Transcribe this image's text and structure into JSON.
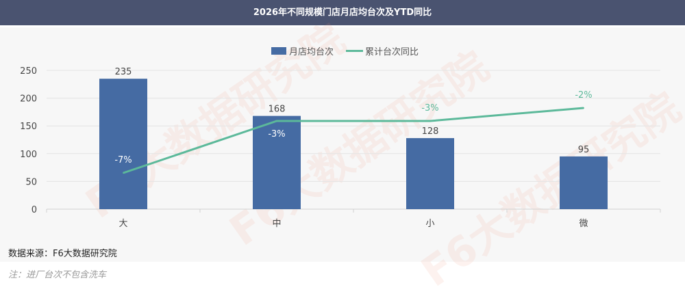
{
  "header": {
    "title": "2026年不同规模门店月店均台次及YTD同比"
  },
  "footer": {
    "source": "数据来源：F6大数据研究院",
    "note": "注：进厂台次不包含洗车"
  },
  "watermark": "F6大数据研究院",
  "chart_data": {
    "type": "bar+line",
    "categories": [
      "大",
      "中",
      "小",
      "微"
    ],
    "series": [
      {
        "name": "月店均台次",
        "type": "bar",
        "values": [
          235,
          168,
          128,
          95
        ],
        "color": "#456ba3",
        "labels": [
          "235",
          "168",
          "128",
          "95"
        ]
      },
      {
        "name": "累计台次同比",
        "type": "line",
        "values": [
          -7,
          -3,
          -3,
          -2
        ],
        "color": "#5cb99a",
        "labels": [
          "-7%",
          "-3%",
          "-3%",
          "-2%"
        ]
      }
    ],
    "ylim": [
      0,
      250
    ],
    "yticks": [
      0,
      50,
      100,
      150,
      200,
      250
    ],
    "grid": true,
    "legend": "top-center"
  }
}
